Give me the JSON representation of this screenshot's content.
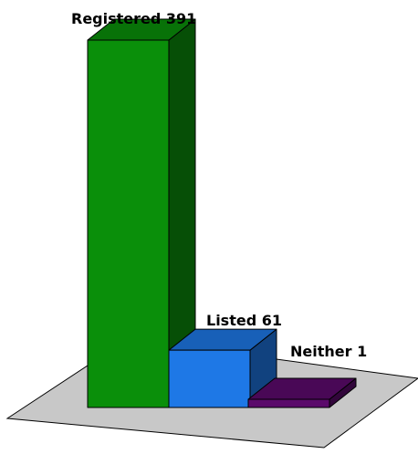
{
  "chart_data": {
    "type": "bar",
    "style": "3d",
    "grid": false,
    "categories": [
      "Registered",
      "Listed",
      "Neither"
    ],
    "values": [
      391,
      61,
      1
    ],
    "data_labels": [
      "Registered 391",
      "Listed 61",
      "Neither 1"
    ],
    "colors": [
      "#0a8f0a",
      "#1e78e6",
      "#5b0a6b"
    ],
    "floor_color": "#c8c8c8"
  }
}
